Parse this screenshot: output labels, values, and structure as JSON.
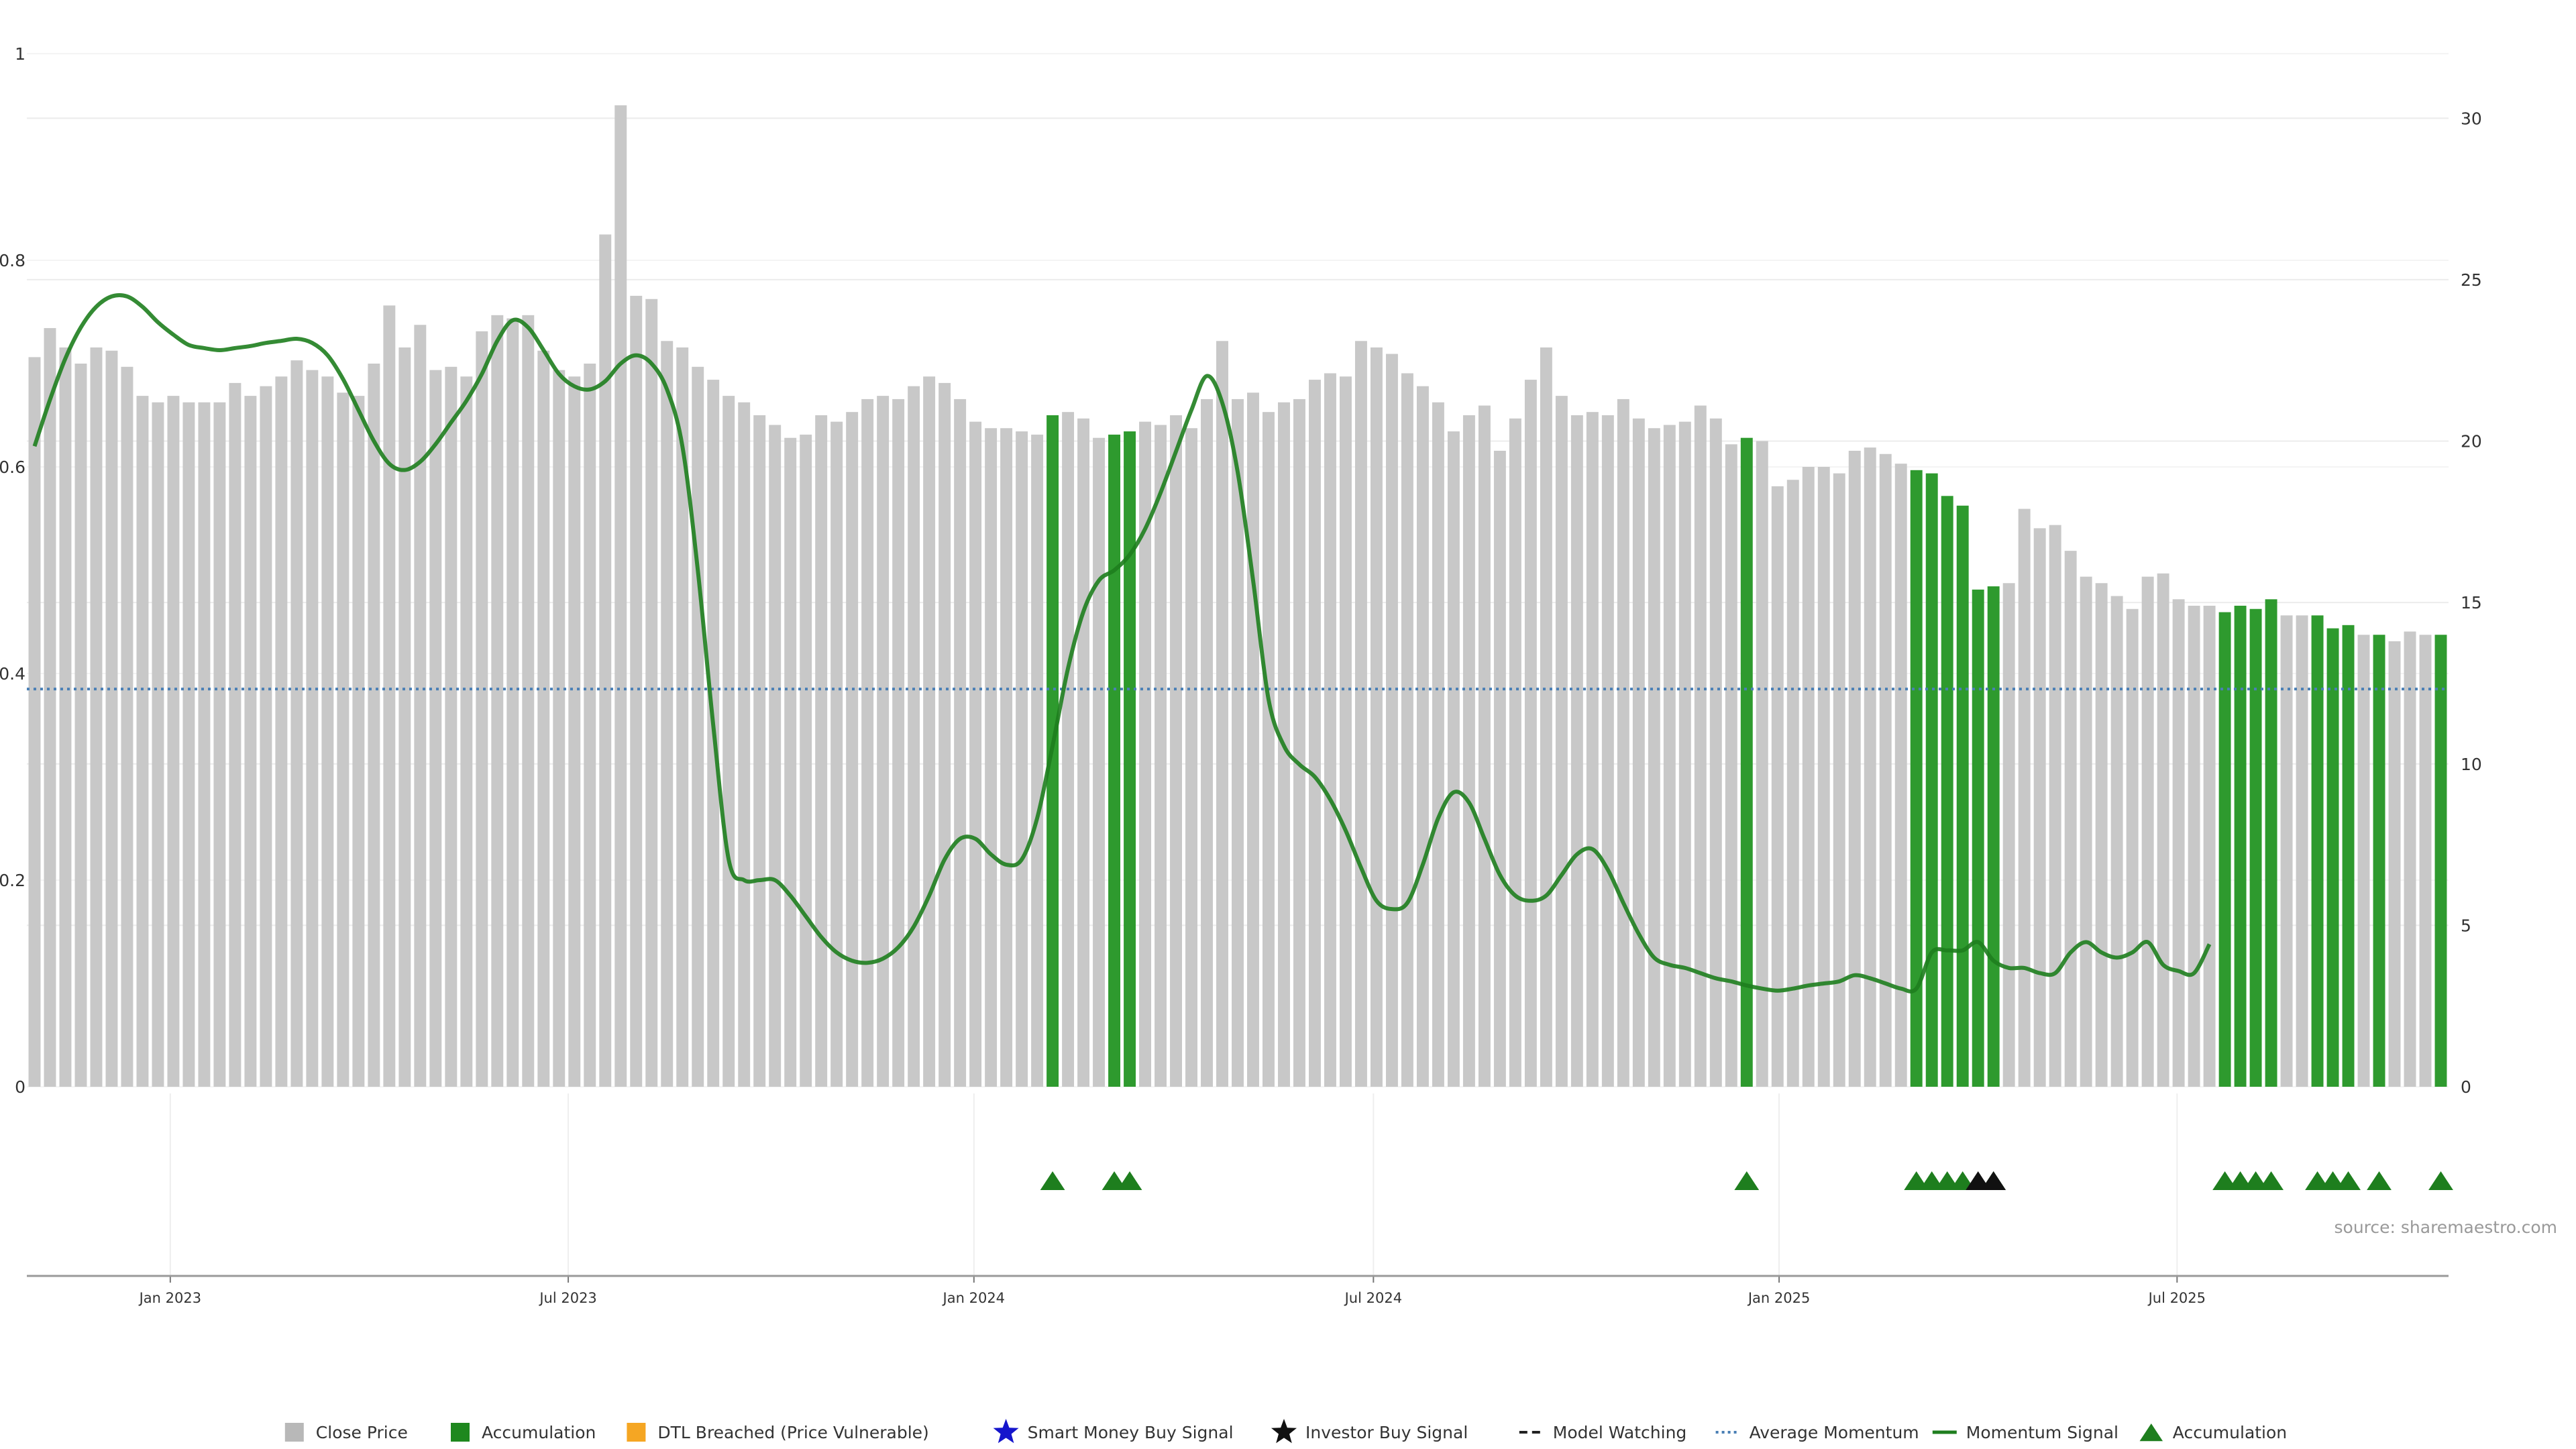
{
  "chart_data": {
    "type": "bar",
    "title": "",
    "xlabel": "",
    "ylabel": "",
    "left_axis": {
      "ylim": [
        0,
        1
      ],
      "ticks": [
        "0",
        "0.2",
        "0.4",
        "0.6",
        "0.8",
        "1"
      ]
    },
    "right_axis": {
      "ylim": [
        0,
        32
      ],
      "ticks": [
        "0",
        "5",
        "10",
        "15",
        "20",
        "25",
        "30"
      ]
    },
    "x_ticks": [
      "Jan 2023",
      "Jul 2023",
      "Jan 2024",
      "Jul 2024",
      "Jan 2025",
      "Jul 2025"
    ],
    "x_tick_weeks": [
      9.3,
      35.1,
      61.4,
      87.3,
      113.6,
      139.4
    ],
    "grid": true,
    "legend_placement": "bottom",
    "colors": {
      "close_price": "#c8c8c8",
      "accumulation": "#2e9a2e",
      "dtl_breached": "#f5a623",
      "smart_money": "#1515cc",
      "investor": "#111111",
      "momentum": "#1e7e1e",
      "average_momentum": "#4a7fb5",
      "model_watching": "#222222"
    },
    "close_price": [
      22.6,
      23.5,
      22.9,
      22.4,
      22.9,
      22.8,
      22.3,
      21.4,
      21.2,
      21.4,
      21.2,
      21.2,
      21.2,
      21.8,
      21.4,
      21.7,
      22.0,
      22.5,
      22.2,
      22.0,
      21.5,
      21.4,
      22.4,
      24.2,
      22.9,
      23.6,
      22.2,
      22.3,
      22.0,
      23.4,
      23.9,
      23.8,
      23.9,
      22.8,
      22.2,
      22.0,
      22.4,
      26.4,
      30.4,
      24.5,
      24.4,
      23.1,
      22.9,
      22.3,
      21.9,
      21.4,
      21.2,
      20.8,
      20.5,
      20.1,
      20.2,
      20.8,
      20.6,
      20.9,
      21.3,
      21.4,
      21.3,
      21.7,
      22.0,
      21.8,
      21.3,
      20.6,
      20.4,
      20.4,
      20.3,
      20.2,
      20.8,
      20.9,
      20.7,
      20.1,
      20.2,
      20.3,
      20.6,
      20.5,
      20.8,
      20.4,
      21.3,
      23.1,
      21.3,
      21.5,
      20.9,
      21.2,
      21.3,
      21.9,
      22.1,
      22.0,
      23.1,
      22.9,
      22.7,
      22.1,
      21.7,
      21.2,
      20.3,
      20.8,
      21.1,
      19.7,
      20.7,
      21.9,
      22.9,
      21.4,
      20.8,
      20.9,
      20.8,
      21.3,
      20.7,
      20.4,
      20.5,
      20.6,
      21.1,
      20.7,
      19.9,
      20.1,
      20.0,
      18.6,
      18.8,
      19.2,
      19.2,
      19.0,
      19.7,
      19.8,
      19.6,
      19.3,
      19.1,
      19.0,
      18.3,
      18.0,
      15.4,
      15.5,
      15.6,
      17.9,
      17.3,
      17.4,
      16.6,
      15.8,
      15.6,
      15.2,
      14.8,
      15.8,
      15.9,
      15.1,
      14.9,
      14.9,
      14.7,
      14.9,
      14.8,
      15.1,
      14.6,
      14.6,
      14.6,
      14.2,
      14.3,
      14.0,
      14.0,
      13.8,
      14.1,
      14.0,
      14.0
    ],
    "accumulation_weeks": [
      66,
      70,
      71,
      111,
      122,
      123,
      124,
      125,
      126,
      127,
      142,
      143,
      144,
      145,
      148,
      149,
      150,
      152,
      156
    ],
    "accumulation_markers": [
      66,
      70,
      71,
      111,
      122,
      123,
      124,
      125,
      127,
      142,
      143,
      144,
      145,
      148,
      149,
      150,
      152,
      156
    ],
    "investor_buy_markers": [
      126,
      127
    ],
    "smart_money_markers": [],
    "dtl_breached_weeks": [],
    "average_momentum": 0.385,
    "momentum_signal": [
      0.62,
      0.665,
      0.705,
      0.735,
      0.755,
      0.765,
      0.765,
      0.755,
      0.74,
      0.728,
      0.718,
      0.715,
      0.713,
      0.715,
      0.717,
      0.72,
      0.722,
      0.724,
      0.72,
      0.708,
      0.685,
      0.655,
      0.625,
      0.603,
      0.597,
      0.605,
      0.622,
      0.643,
      0.664,
      0.69,
      0.722,
      0.742,
      0.735,
      0.713,
      0.69,
      0.678,
      0.675,
      0.683,
      0.7,
      0.708,
      0.7,
      0.675,
      0.62,
      0.5,
      0.35,
      0.22,
      0.2,
      0.2,
      0.2,
      0.185,
      0.165,
      0.145,
      0.13,
      0.122,
      0.12,
      0.124,
      0.135,
      0.155,
      0.185,
      0.22,
      0.24,
      0.24,
      0.225,
      0.215,
      0.22,
      0.26,
      0.33,
      0.405,
      0.46,
      0.49,
      0.5,
      0.515,
      0.54,
      0.575,
      0.615,
      0.655,
      0.688,
      0.662,
      0.595,
      0.49,
      0.375,
      0.33,
      0.312,
      0.3,
      0.278,
      0.248,
      0.212,
      0.18,
      0.172,
      0.178,
      0.215,
      0.26,
      0.285,
      0.275,
      0.24,
      0.205,
      0.185,
      0.18,
      0.185,
      0.205,
      0.225,
      0.23,
      0.21,
      0.178,
      0.148,
      0.125,
      0.118,
      0.115,
      0.11,
      0.105,
      0.102,
      0.098,
      0.095,
      0.093,
      0.095,
      0.098,
      0.1,
      0.102,
      0.108,
      0.105,
      0.1,
      0.095,
      0.095,
      0.13,
      0.132,
      0.132,
      0.14,
      0.122,
      0.115,
      0.115,
      0.11,
      0.11,
      0.13,
      0.14,
      0.13,
      0.125,
      0.13,
      0.14,
      0.118,
      0.112,
      0.11,
      0.138
    ]
  },
  "source_text": "source: sharemaestro.com",
  "legend": [
    {
      "key": "close-price",
      "label": "Close Price",
      "symbol": "square",
      "color": "#b8b8b8"
    },
    {
      "key": "accumulation-bar",
      "label": "Accumulation",
      "symbol": "square",
      "color": "#1e881e"
    },
    {
      "key": "dtl-breached",
      "label": "DTL Breached (Price Vulnerable)",
      "symbol": "square",
      "color": "#f5a623"
    },
    {
      "key": "smart-money-buy-signal",
      "label": "Smart Money Buy Signal",
      "symbol": "star",
      "color": "#1515cc"
    },
    {
      "key": "investor-buy-signal",
      "label": "Investor Buy Signal",
      "symbol": "star",
      "color": "#111111"
    },
    {
      "key": "model-watching",
      "label": "Model Watching",
      "symbol": "dash",
      "color": "#222222"
    },
    {
      "key": "average-momentum",
      "label": "Average Momentum",
      "symbol": "dotted",
      "color": "#4a7fb5"
    },
    {
      "key": "momentum-signal",
      "label": "Momentum Signal",
      "symbol": "line",
      "color": "#1e7e1e"
    },
    {
      "key": "accumulation-marker",
      "label": "Accumulation",
      "symbol": "triangle",
      "color": "#1e7e1e"
    }
  ]
}
